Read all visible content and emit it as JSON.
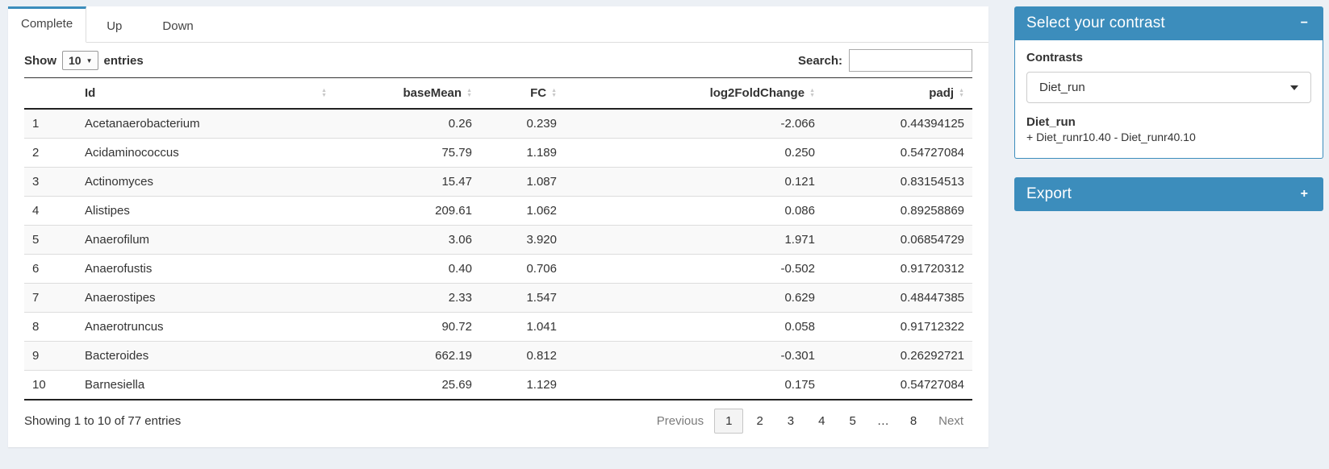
{
  "tabs": [
    {
      "label": "Complete",
      "active": true
    },
    {
      "label": "Up",
      "active": false
    },
    {
      "label": "Down",
      "active": false
    }
  ],
  "length_control": {
    "prefix": "Show",
    "value": "10",
    "suffix": "entries"
  },
  "search": {
    "label": "Search:",
    "value": ""
  },
  "table": {
    "columns": [
      {
        "label": "",
        "sortable": false,
        "align": "left"
      },
      {
        "label": "Id",
        "sortable": true,
        "align": "left"
      },
      {
        "label": "baseMean",
        "sortable": true,
        "align": "right"
      },
      {
        "label": "FC",
        "sortable": true,
        "align": "right"
      },
      {
        "label": "log2FoldChange",
        "sortable": true,
        "align": "right"
      },
      {
        "label": "padj",
        "sortable": true,
        "align": "right"
      }
    ],
    "rows": [
      [
        "1",
        "Acetanaerobacterium",
        "0.26",
        "0.239",
        "-2.066",
        "0.44394125"
      ],
      [
        "2",
        "Acidaminococcus",
        "75.79",
        "1.189",
        "0.250",
        "0.54727084"
      ],
      [
        "3",
        "Actinomyces",
        "15.47",
        "1.087",
        "0.121",
        "0.83154513"
      ],
      [
        "4",
        "Alistipes",
        "209.61",
        "1.062",
        "0.086",
        "0.89258869"
      ],
      [
        "5",
        "Anaerofilum",
        "3.06",
        "3.920",
        "1.971",
        "0.06854729"
      ],
      [
        "6",
        "Anaerofustis",
        "0.40",
        "0.706",
        "-0.502",
        "0.91720312"
      ],
      [
        "7",
        "Anaerostipes",
        "2.33",
        "1.547",
        "0.629",
        "0.48447385"
      ],
      [
        "8",
        "Anaerotruncus",
        "90.72",
        "1.041",
        "0.058",
        "0.91712322"
      ],
      [
        "9",
        "Bacteroides",
        "662.19",
        "0.812",
        "-0.301",
        "0.26292721"
      ],
      [
        "10",
        "Barnesiella",
        "25.69",
        "1.129",
        "0.175",
        "0.54727084"
      ]
    ]
  },
  "footer": {
    "info": "Showing 1 to 10 of 77 entries",
    "pagination": {
      "previous": "Previous",
      "pages": [
        "1",
        "2",
        "3",
        "4",
        "5",
        "…",
        "8"
      ],
      "current": "1",
      "next": "Next"
    }
  },
  "contrast_panel": {
    "title": "Select your contrast",
    "collapse_icon": "−",
    "label": "Contrasts",
    "selected": "Diet_run",
    "detail_title": "Diet_run",
    "detail_formula": "+ Diet_runr10.40 - Diet_runr40.10"
  },
  "export_panel": {
    "title": "Export",
    "expand_icon": "+"
  },
  "colors": {
    "primary": "#3c8dbc",
    "page_bg": "#ecf0f5",
    "stripe": "#f9f9f9"
  }
}
